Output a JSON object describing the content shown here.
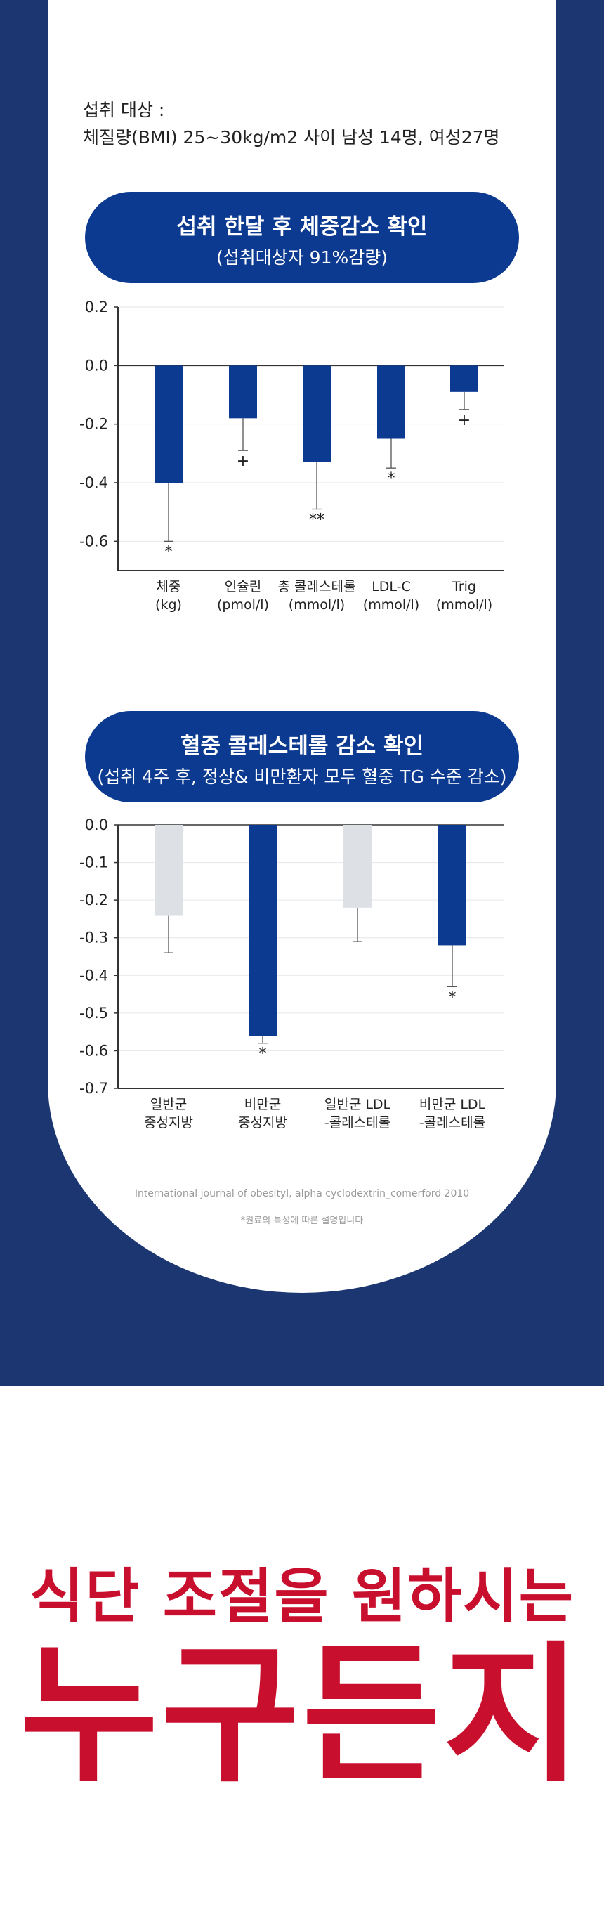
{
  "intro": {
    "label": "섭취 대상 :",
    "subjects": "체질량(BMI) 25~30kg/m2 사이 남성 14명, 여성27명"
  },
  "colors": {
    "navy": "#1b3670",
    "bar_blue": "#0b3a90",
    "bar_gray": "#dde1e6",
    "headline_red": "#c8102e"
  },
  "section1": {
    "title": "섭취 한달 후 체중감소 확인",
    "subtitle": "(섭취대상자 91%감량)"
  },
  "section2": {
    "title": "혈중 콜레스테롤 감소 확인",
    "subtitle": "(섭취 4주 후, 정상& 비만환자 모두 혈중 TG 수준 감소)"
  },
  "chart_data": [
    {
      "type": "bar",
      "categories": [
        [
          "체중",
          "(kg)"
        ],
        [
          "인슐린",
          "(pmol/l)"
        ],
        [
          "총 콜레스테롤",
          "(mmol/l)"
        ],
        [
          "LDL-C",
          "(mmol/l)"
        ],
        [
          "Trig",
          "(mmol/l)"
        ]
      ],
      "values": [
        -0.4,
        -0.18,
        -0.33,
        -0.25,
        -0.09
      ],
      "error_low": [
        -0.6,
        -0.29,
        -0.49,
        -0.35,
        -0.15
      ],
      "markers": [
        "*",
        "+",
        "**",
        "*",
        "+"
      ],
      "bar_colors": [
        "#0b3a90",
        "#0b3a90",
        "#0b3a90",
        "#0b3a90",
        "#0b3a90"
      ],
      "ylim": [
        -0.7,
        0.2
      ],
      "yticks": [
        0.2,
        0.0,
        -0.2,
        -0.4,
        -0.6
      ],
      "ytick_labels": [
        "0.2",
        "0.0",
        "-0.2",
        "-0.4",
        "-0.6"
      ]
    },
    {
      "type": "bar",
      "categories": [
        [
          "일반군",
          "중성지방"
        ],
        [
          "비만군",
          "중성지방"
        ],
        [
          "일반군 LDL",
          "-콜레스테롤"
        ],
        [
          "비만군 LDL",
          "-콜레스테롤"
        ]
      ],
      "values": [
        -0.24,
        -0.56,
        -0.22,
        -0.32
      ],
      "error_low": [
        -0.34,
        -0.58,
        -0.31,
        -0.43
      ],
      "markers": [
        "",
        "*",
        "",
        "*"
      ],
      "bar_colors": [
        "#dde1e6",
        "#0b3a90",
        "#dde1e6",
        "#0b3a90"
      ],
      "ylim": [
        -0.7,
        0.0
      ],
      "yticks": [
        0.0,
        -0.1,
        -0.2,
        -0.3,
        -0.4,
        -0.5,
        -0.6,
        -0.7
      ],
      "ytick_labels": [
        "0.0",
        "-0.1",
        "-0.2",
        "-0.3",
        "-0.4",
        "-0.5",
        "-0.6",
        "-0.7"
      ]
    }
  ],
  "source": "International journal of obesityl, alpha cyclodextrin_comerford 2010",
  "note": "*원료의 특성에 따른 설명입니다",
  "headline": {
    "line1": "식단 조절을 원하시는",
    "line2": "누구든지"
  }
}
